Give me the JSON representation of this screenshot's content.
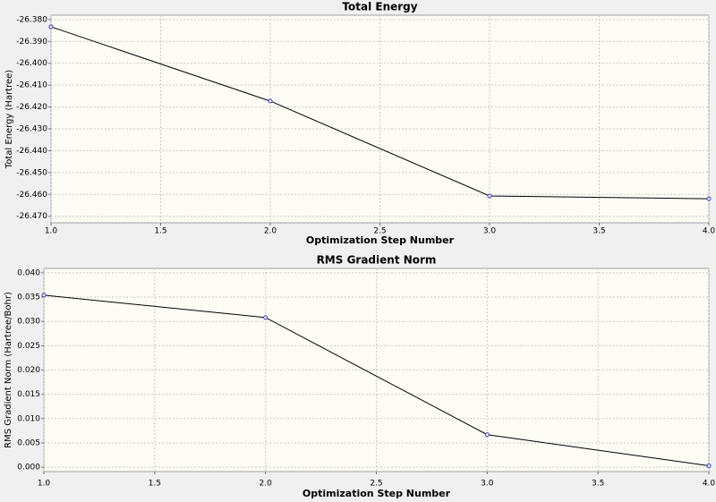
{
  "chart_data": [
    {
      "type": "line",
      "title": "Total Energy",
      "x_label": "Optimization Step Number",
      "y_label": "Total Energy (Hartree)",
      "x": [
        1,
        2,
        3,
        4
      ],
      "values": [
        -26.3833,
        -26.4173,
        -26.4607,
        -26.462
      ],
      "color": "#000000",
      "marker_color": "#3030d0",
      "grid": true,
      "xlim": [
        1,
        4
      ],
      "xticks": [
        {
          "value": 1,
          "label": "1.0"
        },
        {
          "value": 1.5,
          "label": "1.5"
        },
        {
          "value": 2,
          "label": "2.0"
        },
        {
          "value": 2.5,
          "label": "2.5"
        },
        {
          "value": 3,
          "label": "3.0"
        },
        {
          "value": 3.5,
          "label": "3.5"
        },
        {
          "value": 4,
          "label": "4.0"
        }
      ],
      "ylim": [
        -26.473,
        -26.378
      ],
      "yticks": [
        {
          "value": -26.38,
          "label": "-26.380"
        },
        {
          "value": -26.39,
          "label": "-26.390"
        },
        {
          "value": -26.4,
          "label": "-26.400"
        },
        {
          "value": -26.41,
          "label": "-26.410"
        },
        {
          "value": -26.42,
          "label": "-26.420"
        },
        {
          "value": -26.43,
          "label": "-26.430"
        },
        {
          "value": -26.44,
          "label": "-26.440"
        },
        {
          "value": -26.45,
          "label": "-26.450"
        },
        {
          "value": -26.46,
          "label": "-26.460"
        },
        {
          "value": -26.47,
          "label": "-26.470"
        }
      ]
    },
    {
      "type": "line",
      "title": "RMS Gradient Norm",
      "x_label": "Optimization Step Number",
      "y_label": "RMS Gradient Norm (Hartree/Bohr)",
      "x": [
        1,
        2,
        3,
        4
      ],
      "values": [
        0.0354,
        0.0308,
        0.0067,
        0.0003
      ],
      "color": "#000000",
      "marker_color": "#3030d0",
      "grid": true,
      "xlim": [
        1,
        4
      ],
      "xticks": [
        {
          "value": 1,
          "label": "1.0"
        },
        {
          "value": 1.5,
          "label": "1.5"
        },
        {
          "value": 2,
          "label": "2.0"
        },
        {
          "value": 2.5,
          "label": "2.5"
        },
        {
          "value": 3,
          "label": "3.0"
        },
        {
          "value": 3.5,
          "label": "3.5"
        },
        {
          "value": 4,
          "label": "4.0"
        }
      ],
      "ylim": [
        -0.0009,
        0.0409
      ],
      "yticks": [
        {
          "value": 0,
          "label": "0.000"
        },
        {
          "value": 0.005,
          "label": "0.005"
        },
        {
          "value": 0.01,
          "label": "0.010"
        },
        {
          "value": 0.015,
          "label": "0.015"
        },
        {
          "value": 0.02,
          "label": "0.020"
        },
        {
          "value": 0.025,
          "label": "0.025"
        },
        {
          "value": 0.03,
          "label": "0.030"
        },
        {
          "value": 0.035,
          "label": "0.035"
        },
        {
          "value": 0.04,
          "label": "0.040"
        }
      ]
    }
  ]
}
